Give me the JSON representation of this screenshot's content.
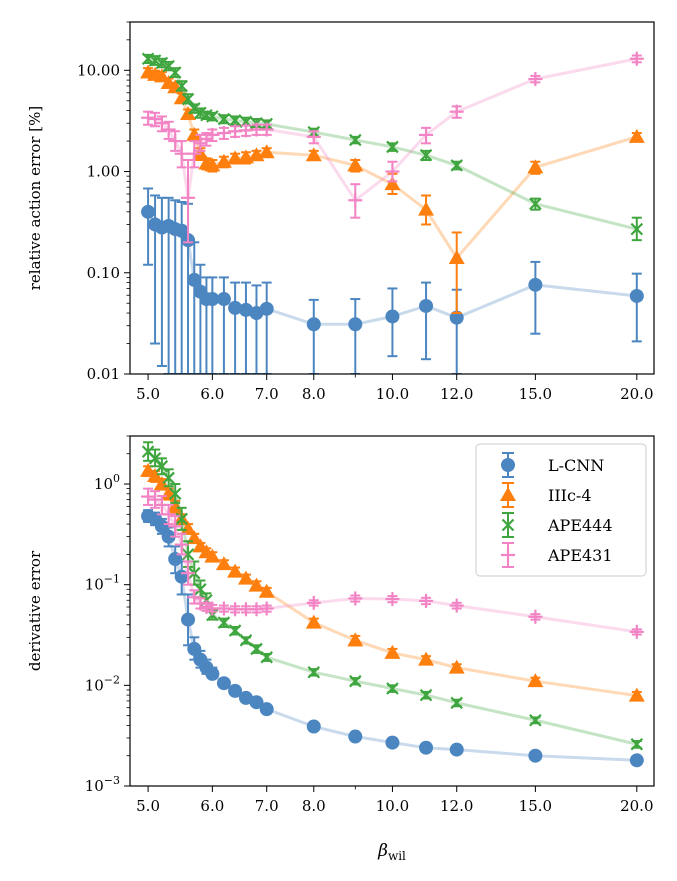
{
  "chart_data": [
    {
      "type": "line",
      "yscale": "log",
      "xscale": "log",
      "ylabel": "relative action error [%]",
      "xlabel": "",
      "ylim": [
        0.01,
        30
      ],
      "xlim": [
        4.75,
        21.0
      ],
      "xticks": [
        5,
        6,
        7,
        8,
        10,
        12,
        15,
        20
      ],
      "xtick_labels": [
        "5.0",
        "6.0",
        "7.0",
        "8.0",
        "10.0",
        "12.0",
        "15.0",
        "20.0"
      ],
      "yticks": [
        0.01,
        0.1,
        1,
        10
      ],
      "ytick_labels": [
        "0.01",
        "0.10",
        "1.00",
        "10.00"
      ],
      "series": [
        {
          "name": "L-CNN",
          "color": "#4c86c1",
          "marker": "circle",
          "x": [
            5.0,
            5.1,
            5.2,
            5.3,
            5.4,
            5.5,
            5.6,
            5.7,
            5.8,
            5.9,
            6.0,
            6.2,
            6.4,
            6.6,
            6.8,
            7.0,
            8.0,
            9.0,
            10.0,
            11.0,
            12.0,
            15.0,
            20.0
          ],
          "y": [
            0.4,
            0.3,
            0.28,
            0.29,
            0.27,
            0.26,
            0.21,
            0.085,
            0.065,
            0.055,
            0.055,
            0.055,
            0.045,
            0.043,
            0.04,
            0.044,
            0.031,
            0.031,
            0.037,
            0.047,
            0.036,
            0.076,
            0.059
          ],
          "err_low": [
            0.12,
            0.02,
            0.012,
            0.01,
            0.01,
            0.01,
            0.01,
            0.01,
            0.01,
            0.01,
            0.01,
            0.01,
            0.01,
            0.01,
            0.01,
            0.01,
            0.01,
            0.01,
            0.015,
            0.014,
            0.01,
            0.025,
            0.021
          ],
          "err_high": [
            0.68,
            0.58,
            0.55,
            0.55,
            0.52,
            0.5,
            0.48,
            0.2,
            0.12,
            0.09,
            0.09,
            0.09,
            0.08,
            0.08,
            0.075,
            0.08,
            0.054,
            0.055,
            0.07,
            0.08,
            0.068,
            0.128,
            0.098
          ]
        },
        {
          "name": "IIIc-4",
          "color": "#ff7f0e",
          "marker": "triangle",
          "x": [
            5.0,
            5.1,
            5.2,
            5.3,
            5.4,
            5.5,
            5.6,
            5.7,
            5.8,
            5.9,
            6.0,
            6.2,
            6.4,
            6.6,
            6.8,
            7.0,
            8.0,
            9.0,
            10.0,
            11.0,
            12.0,
            15.0,
            20.0
          ],
          "y": [
            9.5,
            9.0,
            8.7,
            7.5,
            6.8,
            5.3,
            3.7,
            2.3,
            1.5,
            1.2,
            1.15,
            1.25,
            1.35,
            1.38,
            1.45,
            1.55,
            1.45,
            1.15,
            0.75,
            0.42,
            0.14,
            1.1,
            2.2
          ],
          "err_low": [
            8.6,
            8.2,
            7.9,
            6.8,
            6.2,
            4.8,
            3.3,
            2.0,
            1.3,
            1.05,
            1.0,
            1.1,
            1.2,
            1.2,
            1.3,
            1.4,
            1.3,
            1.0,
            0.6,
            0.3,
            0.04,
            0.95,
            2.0
          ],
          "err_high": [
            10.5,
            9.9,
            9.6,
            8.3,
            7.5,
            5.9,
            4.1,
            2.6,
            1.7,
            1.35,
            1.3,
            1.4,
            1.5,
            1.55,
            1.6,
            1.7,
            1.6,
            1.3,
            0.95,
            0.58,
            0.25,
            1.25,
            2.4
          ]
        },
        {
          "name": "APE444",
          "color": "#3fa63f",
          "marker": "x",
          "x": [
            5.0,
            5.1,
            5.2,
            5.3,
            5.4,
            5.5,
            5.6,
            5.7,
            5.8,
            5.9,
            6.0,
            6.2,
            6.4,
            6.6,
            6.8,
            7.0,
            8.0,
            9.0,
            10.0,
            11.0,
            12.0,
            15.0,
            20.0
          ],
          "y": [
            13.0,
            12.5,
            11.8,
            11.0,
            9.5,
            7.0,
            5.2,
            4.2,
            3.8,
            3.6,
            3.5,
            3.3,
            3.2,
            3.1,
            3.0,
            2.95,
            2.45,
            2.05,
            1.75,
            1.45,
            1.15,
            0.48,
            0.27
          ],
          "err_low": [
            11.8,
            11.3,
            10.7,
            10.0,
            8.6,
            6.3,
            4.7,
            3.8,
            3.4,
            3.3,
            3.2,
            3.0,
            2.9,
            2.85,
            2.75,
            2.7,
            2.25,
            1.9,
            1.6,
            1.3,
            1.05,
            0.42,
            0.21
          ],
          "err_high": [
            14.2,
            13.8,
            13.0,
            12.1,
            10.5,
            7.8,
            5.8,
            4.6,
            4.2,
            3.9,
            3.8,
            3.6,
            3.5,
            3.4,
            3.3,
            3.2,
            2.65,
            2.2,
            1.9,
            1.6,
            1.25,
            0.54,
            0.35
          ]
        },
        {
          "name": "APE431",
          "color": "#f283c4",
          "marker": "plus",
          "x": [
            5.0,
            5.1,
            5.2,
            5.3,
            5.4,
            5.5,
            5.6,
            5.7,
            5.8,
            5.9,
            6.0,
            6.2,
            6.4,
            6.6,
            6.8,
            7.0,
            8.0,
            9.0,
            10.0,
            11.0,
            12.0,
            15.0,
            20.0
          ],
          "y": [
            3.4,
            3.3,
            3.0,
            2.6,
            2.0,
            1.5,
            0.55,
            1.5,
            1.9,
            2.1,
            2.3,
            2.4,
            2.5,
            2.55,
            2.6,
            2.6,
            2.2,
            0.52,
            1.0,
            2.3,
            3.9,
            8.2,
            13.0
          ],
          "err_low": [
            2.9,
            2.8,
            2.5,
            2.1,
            1.6,
            1.1,
            0.2,
            1.1,
            1.6,
            1.8,
            2.0,
            2.1,
            2.2,
            2.25,
            2.3,
            2.3,
            1.9,
            0.35,
            0.8,
            1.9,
            3.4,
            7.6,
            12.0
          ],
          "err_high": [
            3.9,
            3.8,
            3.5,
            3.1,
            2.5,
            2.0,
            1.3,
            2.0,
            2.3,
            2.4,
            2.6,
            2.7,
            2.8,
            2.85,
            2.9,
            2.9,
            2.5,
            0.75,
            1.25,
            2.7,
            4.4,
            8.8,
            14.0
          ]
        }
      ]
    },
    {
      "type": "line",
      "yscale": "log",
      "xscale": "log",
      "ylabel": "derivative error",
      "xlabel": "βwil",
      "ylim": [
        0.001,
        3.0
      ],
      "xlim": [
        4.75,
        21.0
      ],
      "xticks": [
        5,
        6,
        7,
        8,
        10,
        12,
        15,
        20
      ],
      "xtick_labels": [
        "5.0",
        "6.0",
        "7.0",
        "8.0",
        "10.0",
        "12.0",
        "15.0",
        "20.0"
      ],
      "yticks": [
        0.001,
        0.01,
        0.1,
        1
      ],
      "legend_position": "top-right",
      "series": [
        {
          "name": "L-CNN",
          "color": "#4c86c1",
          "marker": "circle",
          "x": [
            5.0,
            5.1,
            5.2,
            5.3,
            5.4,
            5.5,
            5.6,
            5.7,
            5.8,
            5.9,
            6.0,
            6.2,
            6.4,
            6.6,
            6.8,
            7.0,
            8.0,
            9.0,
            10.0,
            11.0,
            12.0,
            15.0,
            20.0
          ],
          "y": [
            0.48,
            0.45,
            0.38,
            0.3,
            0.18,
            0.12,
            0.045,
            0.023,
            0.018,
            0.015,
            0.013,
            0.0105,
            0.0088,
            0.0075,
            0.0068,
            0.0058,
            0.0039,
            0.0031,
            0.0027,
            0.0024,
            0.0023,
            0.002,
            0.0018
          ],
          "err_low": [
            0.42,
            0.39,
            0.32,
            0.24,
            0.13,
            0.08,
            0.025,
            0.018,
            0.015,
            0.013,
            0.012,
            0.0097,
            0.0082,
            0.0071,
            0.0064,
            0.0055,
            0.0037,
            0.0029,
            0.0025,
            0.0023,
            0.0022,
            0.0019,
            0.0017
          ],
          "err_high": [
            0.55,
            0.52,
            0.45,
            0.37,
            0.24,
            0.17,
            0.08,
            0.03,
            0.022,
            0.018,
            0.015,
            0.0115,
            0.0095,
            0.008,
            0.0072,
            0.0062,
            0.0041,
            0.0033,
            0.0029,
            0.0026,
            0.0024,
            0.0021,
            0.0019
          ]
        },
        {
          "name": "IIIc-4",
          "color": "#ff7f0e",
          "marker": "triangle",
          "x": [
            5.0,
            5.1,
            5.2,
            5.3,
            5.4,
            5.5,
            5.6,
            5.7,
            5.8,
            5.9,
            6.0,
            6.2,
            6.4,
            6.6,
            6.8,
            7.0,
            8.0,
            9.0,
            10.0,
            11.0,
            12.0,
            15.0,
            20.0
          ],
          "y": [
            1.35,
            1.2,
            1.0,
            0.8,
            0.6,
            0.45,
            0.36,
            0.29,
            0.24,
            0.21,
            0.19,
            0.16,
            0.135,
            0.115,
            0.098,
            0.085,
            0.042,
            0.028,
            0.021,
            0.018,
            0.015,
            0.011,
            0.0079
          ],
          "err_low": [
            1.2,
            1.05,
            0.88,
            0.7,
            0.52,
            0.4,
            0.32,
            0.26,
            0.22,
            0.19,
            0.17,
            0.145,
            0.122,
            0.104,
            0.088,
            0.077,
            0.038,
            0.025,
            0.019,
            0.0165,
            0.0138,
            0.0101,
            0.0072
          ],
          "err_high": [
            1.5,
            1.35,
            1.12,
            0.9,
            0.68,
            0.5,
            0.4,
            0.32,
            0.26,
            0.23,
            0.21,
            0.175,
            0.148,
            0.126,
            0.108,
            0.093,
            0.046,
            0.031,
            0.023,
            0.0195,
            0.0162,
            0.0119,
            0.0086
          ]
        },
        {
          "name": "APE444",
          "color": "#3fa63f",
          "marker": "x",
          "x": [
            5.0,
            5.1,
            5.2,
            5.3,
            5.4,
            5.5,
            5.6,
            5.7,
            5.8,
            5.9,
            6.0,
            6.2,
            6.4,
            6.6,
            6.8,
            7.0,
            8.0,
            9.0,
            10.0,
            11.0,
            12.0,
            15.0,
            20.0
          ],
          "y": [
            2.1,
            1.8,
            1.5,
            1.15,
            0.8,
            0.45,
            0.2,
            0.13,
            0.09,
            0.07,
            0.05,
            0.042,
            0.035,
            0.028,
            0.023,
            0.019,
            0.0135,
            0.011,
            0.0093,
            0.008,
            0.0067,
            0.0045,
            0.0026
          ],
          "err_low": [
            1.7,
            1.5,
            1.25,
            0.95,
            0.65,
            0.35,
            0.15,
            0.1,
            0.075,
            0.06,
            0.045,
            0.038,
            0.032,
            0.026,
            0.021,
            0.0175,
            0.0125,
            0.0102,
            0.0086,
            0.0074,
            0.0062,
            0.0042,
            0.0024
          ],
          "err_high": [
            2.6,
            2.2,
            1.8,
            1.4,
            1.0,
            0.58,
            0.27,
            0.17,
            0.11,
            0.082,
            0.056,
            0.046,
            0.038,
            0.03,
            0.025,
            0.0205,
            0.0145,
            0.0118,
            0.01,
            0.0086,
            0.0072,
            0.0048,
            0.0028
          ]
        },
        {
          "name": "APE431",
          "color": "#f283c4",
          "marker": "plus",
          "x": [
            5.0,
            5.1,
            5.2,
            5.3,
            5.4,
            5.5,
            5.6,
            5.7,
            5.8,
            5.9,
            6.0,
            6.2,
            6.4,
            6.6,
            6.8,
            7.0,
            8.0,
            9.0,
            10.0,
            11.0,
            12.0,
            15.0,
            20.0
          ],
          "y": [
            0.75,
            0.7,
            0.62,
            0.5,
            0.38,
            0.25,
            0.13,
            0.075,
            0.065,
            0.06,
            0.058,
            0.058,
            0.057,
            0.057,
            0.057,
            0.058,
            0.066,
            0.073,
            0.072,
            0.069,
            0.062,
            0.048,
            0.034
          ],
          "err_low": [
            0.62,
            0.58,
            0.5,
            0.4,
            0.3,
            0.2,
            0.1,
            0.065,
            0.058,
            0.055,
            0.054,
            0.054,
            0.053,
            0.053,
            0.053,
            0.054,
            0.062,
            0.068,
            0.067,
            0.064,
            0.058,
            0.045,
            0.032
          ],
          "err_high": [
            0.9,
            0.85,
            0.76,
            0.62,
            0.48,
            0.32,
            0.17,
            0.088,
            0.073,
            0.066,
            0.063,
            0.062,
            0.061,
            0.061,
            0.061,
            0.062,
            0.07,
            0.078,
            0.077,
            0.074,
            0.066,
            0.051,
            0.036
          ]
        }
      ]
    }
  ]
}
